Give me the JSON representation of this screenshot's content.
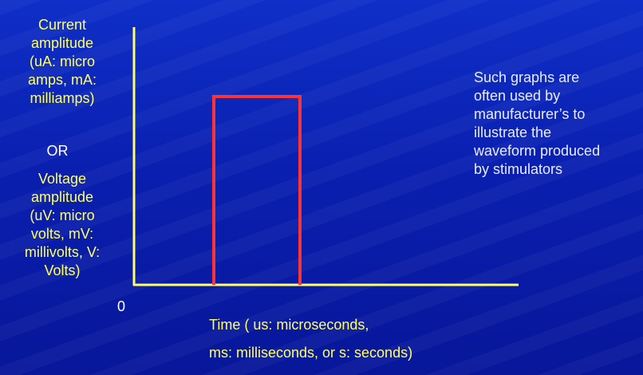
{
  "y_axis_label_current": [
    "Current",
    "amplitude",
    "(uA: micro",
    "amps, mA:",
    "milliamps)"
  ],
  "y_axis_or": "OR",
  "y_axis_label_voltage": [
    "Voltage",
    "amplitude",
    "(uV: micro",
    "volts, mV:",
    "millivolts, V:",
    "Volts)"
  ],
  "origin_label": "0",
  "x_axis_label": [
    "Time ( us: microseconds,",
    "ms: milliseconds, or s: seconds)"
  ],
  "note": [
    "Such graphs are",
    "often used by",
    "manufacturer’s to",
    "illustrate the",
    "waveform produced",
    "by stimulators"
  ],
  "colors": {
    "background": "#0a1ea8",
    "axis": "#ffff66",
    "pulse": "#ff3333",
    "label_yellow": "#ffff66",
    "label_white": "#ffffff"
  }
}
